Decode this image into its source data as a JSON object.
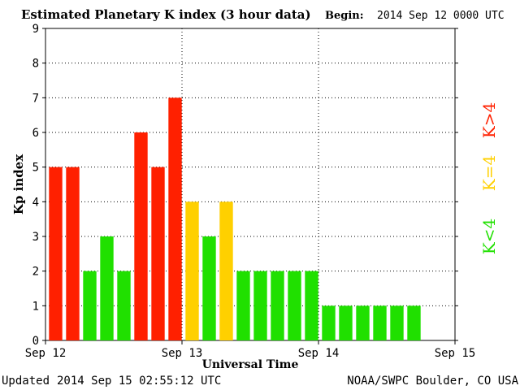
{
  "header": {
    "title": "Estimated Planetary K index (3 hour data)",
    "begin_label": "Begin:",
    "begin_value": "2014 Sep 12 0000 UTC"
  },
  "footer": {
    "updated_label": "Updated",
    "updated_value": "2014 Sep 15 02:55:12 UTC",
    "source": "NOAA/SWPC Boulder, CO USA"
  },
  "colors": {
    "storm": "#ff2000",
    "active": "#ffd000",
    "quiet": "#20e000",
    "grid": "#000000",
    "axis": "#000000"
  },
  "legend": {
    "storm": "K>4",
    "active": "K=4",
    "quiet": "K<4"
  },
  "chart_data": {
    "type": "bar",
    "title": "Estimated Planetary K index (3 hour data)",
    "xlabel": "Universal Time",
    "ylabel": "Kp index",
    "ylim": [
      0,
      9
    ],
    "yticks": [
      "0",
      "1",
      "2",
      "3",
      "4",
      "5",
      "6",
      "7",
      "8",
      "9"
    ],
    "xticks": [
      "Sep 12",
      "Sep 13",
      "Sep 14",
      "Sep 15"
    ],
    "xrange_hours": [
      0,
      72
    ],
    "bar_interval_hours": 3,
    "grid": true,
    "values": [
      5,
      5,
      2,
      3,
      2,
      6,
      5,
      7,
      4,
      3,
      4,
      2,
      2,
      2,
      2,
      2,
      1,
      1,
      1,
      1,
      1,
      1
    ],
    "color_rule": "red if K>4, yellow if K=4, green if K<4"
  }
}
